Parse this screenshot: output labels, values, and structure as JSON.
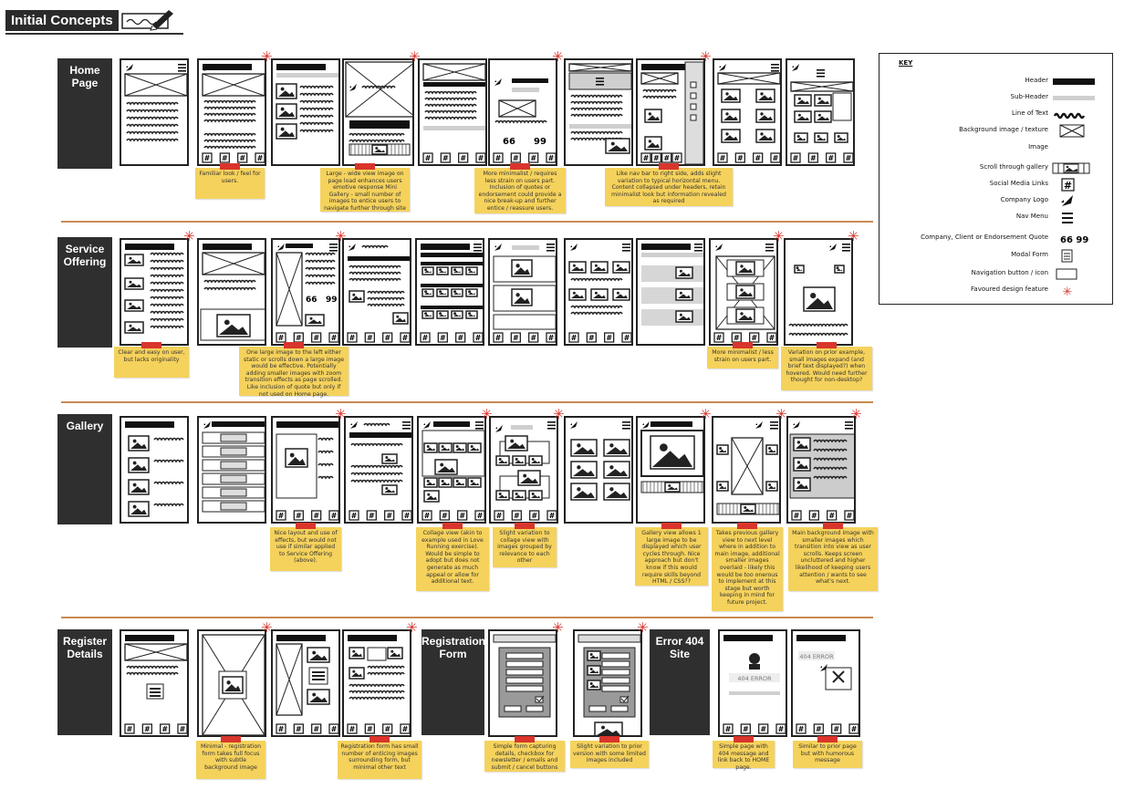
{
  "title": "Initial Concepts",
  "sections": [
    {
      "label": "Home Page"
    },
    {
      "label": "Service Offering"
    },
    {
      "label": "Gallery"
    },
    {
      "label": "Register Details"
    }
  ],
  "home_notes": [
    "Familiar look / feel for users.",
    "Large - wide view image on page load enhances users emotive response Mini Gallery - small number of images to entice users to navigate further through site",
    "More minimalist / requires less strain on users part. Inclusion of quotes or endorsement could provide a nice break-up and further entice / reassure users.",
    "Like nav bar to right side, adds slight variation to typical horizontal menu. Content collapsed under headers, retain minimalist look but information revealed as required"
  ],
  "service_notes": [
    "Clear and easy on user, but lacks originality",
    "One large image to the left either static or scrolls down a large image would be effective. Potentially adding smaller images with zoom transition effects as page scrolled. Like inclusion of quote but only if not used on Home page.",
    "More minimalist / less strain on users part.",
    "Variation on prior example, small images expand (and brief text displayed?) when hovered. Would need further thought for non-desktop?"
  ],
  "gallery_notes": [
    "Nice layout and use of effects, but would not use if similar applied to Service Offering (above).",
    "Collage view (akin to example used in Love Running exercise). Would be simple to adopt but does not generate as much appeal or allow for additional text.",
    "Slight variation to collage view with images grouped by relevance to each other",
    "Gallery view allows 1 large image to be displayed which user cycles through. Nice approach but don't know if this would require skills beyond HTML / CSS??",
    "Takes previous gallery view to next level where in addition to main image, additional smaller images overlaid - likely this would be too onerous to implement at this stage but worth keeping in mind for future project.",
    "Main background image with smaller images which transition into view as user scrolls. Keeps screen uncluttered and higher likelihood of keeping users attention / wants to see what's next."
  ],
  "register": {
    "registration_form_label": "Registration Form",
    "error_label": "Error 404 Site",
    "error_text": "404 ERROR",
    "notes": [
      "Minimal - registration form takes full focus with subtle background image",
      "Registration form has small number of enticing images surrounding form, but minimal other text",
      "Simple form capturing details, checkbox for newsletter / emails and submit / cancel buttons",
      "Slight variation to prior version with some limited images included",
      "Simple page with 404 message and link back to HOME page.",
      "Similar to prior page but with humorous message"
    ]
  },
  "key": {
    "title": "KEY",
    "items": [
      {
        "label": "Header",
        "icon": "header-bar"
      },
      {
        "label": "Sub-Header",
        "icon": "subheader-bar"
      },
      {
        "label": "Line of Text",
        "icon": "scribble"
      },
      {
        "label": "Background image / texture",
        "icon": "crossed-box"
      },
      {
        "label": "Image",
        "icon": "image"
      },
      {
        "label": "Scroll through gallery",
        "icon": "film-strip"
      },
      {
        "label": "Social Media Links",
        "icon": "hash-box"
      },
      {
        "label": "Company Logo",
        "icon": "rocket"
      },
      {
        "label": "Nav Menu",
        "icon": "hamburger"
      },
      {
        "label": "Company, Client or Endorsement Quote",
        "icon": "quote-marks"
      },
      {
        "label": "Modal Form",
        "icon": "form"
      },
      {
        "label": "Navigation button / icon",
        "icon": "outline-button"
      },
      {
        "label": "Favoured design feature",
        "icon": "red-asterisk"
      }
    ]
  },
  "colors": {
    "note": "#f5d25c",
    "tape": "#d9352c",
    "label_bg": "#2f2f2f",
    "divider": "#c98a52"
  }
}
